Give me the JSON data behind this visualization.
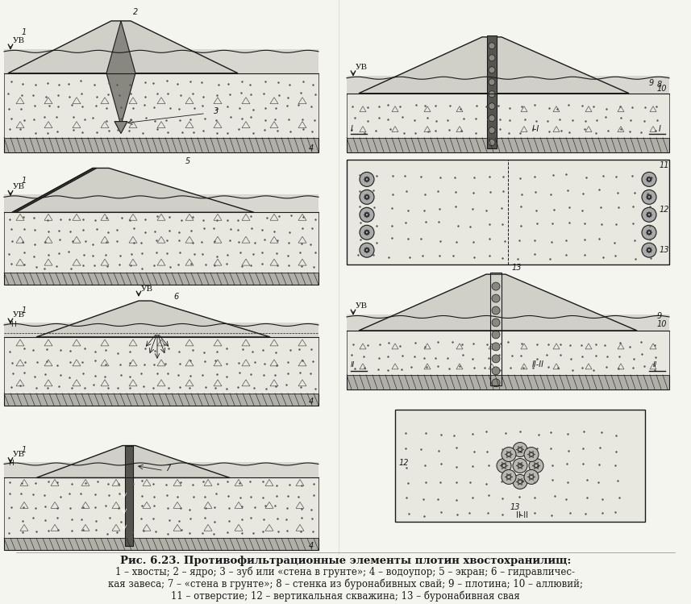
{
  "title": "Рис. 6.23. Противофильтрационные элементы плотин хвостохранилищ:",
  "legend_line1": "1 – хвосты; 2 – ядро; 3 – зуб или «стена в грунте»; 4 – водоупор; 5 – экран; 6 – гидравличес-",
  "legend_line2": "кая завеса; 7 – «стена в грунте»; 8 – стенка из буронабивных свай; 9 – плотина; 10 – аллювий;",
  "legend_line3": "11 – отверстие; 12 – вертикальная скважина; 13 – буронабивная свая",
  "bg_color": "#f5f5f0",
  "line_color": "#1a1a1a",
  "fill_color_light": "#d8d8d0",
  "fill_color_dark": "#888880"
}
